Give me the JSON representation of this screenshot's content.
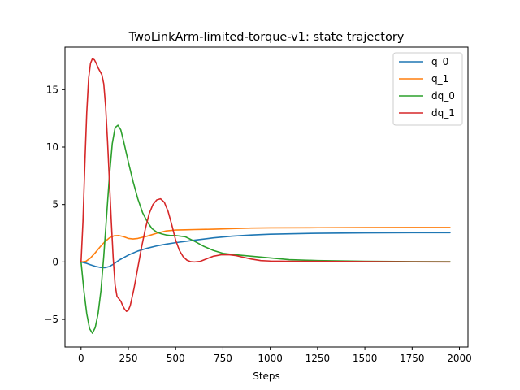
{
  "chart_data": {
    "type": "line",
    "title": "TwoLinkArm-limited-torque-v1: state trajectory",
    "xlabel": "Steps",
    "ylabel": "",
    "xlim": [
      -85,
      2045
    ],
    "ylim": [
      -7.4,
      18.7
    ],
    "xticks": [
      0,
      250,
      500,
      750,
      1000,
      1250,
      1500,
      1750,
      2000
    ],
    "yticks": [
      -5,
      0,
      5,
      10,
      15
    ],
    "grid": false,
    "legend_position": "top-right",
    "series": [
      {
        "name": "q_0",
        "color": "#1f77b4",
        "x": [
          0,
          25,
          50,
          75,
          100,
          125,
          150,
          175,
          200,
          250,
          300,
          350,
          400,
          450,
          500,
          600,
          700,
          800,
          900,
          1000,
          1250,
          1500,
          1750,
          1950
        ],
        "y": [
          0,
          -0.1,
          -0.25,
          -0.38,
          -0.47,
          -0.5,
          -0.4,
          -0.15,
          0.15,
          0.6,
          0.95,
          1.2,
          1.4,
          1.55,
          1.68,
          1.9,
          2.1,
          2.25,
          2.35,
          2.42,
          2.5,
          2.53,
          2.55,
          2.55
        ]
      },
      {
        "name": "q_1",
        "color": "#ff7f0e",
        "x": [
          0,
          25,
          50,
          75,
          100,
          125,
          150,
          175,
          200,
          225,
          250,
          275,
          300,
          350,
          400,
          450,
          500,
          550,
          600,
          700,
          800,
          900,
          1000,
          1250,
          1500,
          1750,
          1950
        ],
        "y": [
          0,
          0.05,
          0.35,
          0.8,
          1.3,
          1.75,
          2.1,
          2.28,
          2.3,
          2.2,
          2.05,
          2.0,
          2.05,
          2.25,
          2.5,
          2.7,
          2.78,
          2.8,
          2.82,
          2.85,
          2.9,
          2.95,
          2.97,
          2.98,
          2.99,
          3.0,
          3.0
        ]
      },
      {
        "name": "dq_0",
        "color": "#2ca02c",
        "x": [
          0,
          15,
          30,
          45,
          60,
          75,
          90,
          105,
          120,
          135,
          150,
          165,
          180,
          195,
          210,
          225,
          250,
          275,
          300,
          325,
          350,
          375,
          400,
          425,
          450,
          475,
          500,
          550,
          600,
          650,
          700,
          750,
          800,
          900,
          1000,
          1100,
          1250,
          1500,
          1750,
          1950
        ],
        "y": [
          0,
          -2.5,
          -4.5,
          -5.8,
          -6.2,
          -5.7,
          -4.5,
          -2.5,
          0.5,
          4.0,
          7.5,
          10.3,
          11.7,
          11.9,
          11.5,
          10.5,
          8.7,
          7.0,
          5.5,
          4.3,
          3.5,
          2.9,
          2.6,
          2.45,
          2.35,
          2.3,
          2.3,
          2.2,
          1.8,
          1.35,
          1.0,
          0.75,
          0.65,
          0.5,
          0.35,
          0.2,
          0.12,
          0.06,
          0.03,
          0.02
        ]
      },
      {
        "name": "dq_1",
        "color": "#d62728",
        "x": [
          0,
          10,
          20,
          30,
          40,
          50,
          60,
          70,
          80,
          90,
          100,
          110,
          120,
          130,
          140,
          150,
          160,
          170,
          180,
          190,
          200,
          210,
          220,
          230,
          240,
          250,
          260,
          280,
          300,
          320,
          340,
          360,
          380,
          400,
          420,
          440,
          460,
          480,
          500,
          520,
          540,
          560,
          580,
          600,
          630,
          660,
          700,
          740,
          780,
          820,
          860,
          900,
          950,
          1000,
          1100,
          1250,
          1500,
          1750,
          1950
        ],
        "y": [
          0,
          3.5,
          8.5,
          13.0,
          16.0,
          17.3,
          17.7,
          17.6,
          17.3,
          16.9,
          16.6,
          16.3,
          15.5,
          13.5,
          10.5,
          7.0,
          3.5,
          0.3,
          -2.0,
          -3.0,
          -3.2,
          -3.4,
          -3.8,
          -4.1,
          -4.3,
          -4.2,
          -3.8,
          -2.3,
          -0.5,
          1.3,
          2.9,
          4.2,
          5.0,
          5.4,
          5.5,
          5.2,
          4.4,
          3.2,
          1.9,
          1.0,
          0.45,
          0.15,
          0.02,
          0.0,
          0.05,
          0.25,
          0.5,
          0.62,
          0.63,
          0.55,
          0.4,
          0.25,
          0.12,
          0.08,
          0.06,
          0.05,
          0.03,
          0.01,
          0.0
        ]
      }
    ]
  }
}
